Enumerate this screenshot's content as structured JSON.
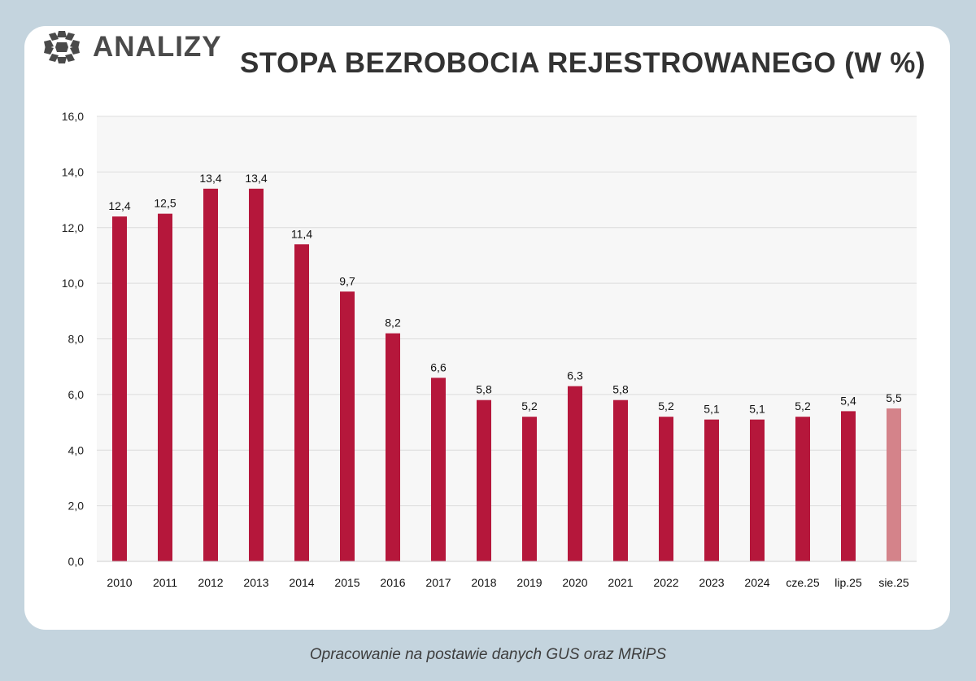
{
  "brand": {
    "name": "ANALIZY",
    "icon": "logo-icon"
  },
  "footer": {
    "source": "Opracowanie na postawie danych GUS oraz MRiPS"
  },
  "colors": {
    "bar": "#b5173b",
    "bar_highlight": "#d4838a",
    "plot_bg": "#f7f7f7"
  },
  "chart_data": {
    "type": "bar",
    "title": "STOPA BEZROBOCIA REJESTROWANEGO (W %)",
    "xlabel": "",
    "ylabel": "",
    "categories": [
      "2010",
      "2011",
      "2012",
      "2013",
      "2014",
      "2015",
      "2016",
      "2017",
      "2018",
      "2019",
      "2020",
      "2021",
      "2022",
      "2023",
      "2024",
      "cze.25",
      "lip.25",
      "sie.25"
    ],
    "values": [
      12.4,
      12.5,
      13.4,
      13.4,
      11.4,
      9.7,
      8.2,
      6.6,
      5.8,
      5.2,
      6.3,
      5.8,
      5.2,
      5.1,
      5.1,
      5.2,
      5.4,
      5.5
    ],
    "value_labels": [
      "12,4",
      "12,5",
      "13,4",
      "13,4",
      "11,4",
      "9,7",
      "8,2",
      "6,6",
      "5,8",
      "5,2",
      "6,3",
      "5,8",
      "5,2",
      "5,1",
      "5,1",
      "5,2",
      "5,4",
      "5,5"
    ],
    "highlight_index": 17,
    "ylim": [
      0,
      16
    ],
    "yticks": [
      0,
      2,
      4,
      6,
      8,
      10,
      12,
      14,
      16
    ],
    "ytick_labels": [
      "0,0",
      "2,0",
      "4,0",
      "6,0",
      "8,0",
      "10,0",
      "12,0",
      "14,0",
      "16,0"
    ],
    "grid": true,
    "legend": "none"
  }
}
